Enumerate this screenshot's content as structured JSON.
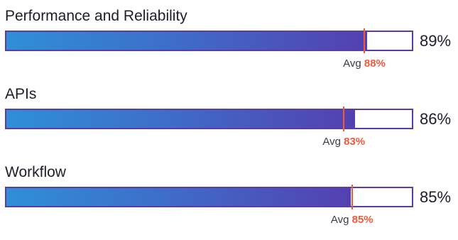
{
  "chart_data": {
    "type": "bar",
    "orientation": "horizontal",
    "xlim": [
      0,
      100
    ],
    "avg_prefix": "Avg",
    "colors": {
      "bar_gradient_start": "#2f8fd6",
      "bar_gradient_end": "#5440b0",
      "bar_border": "#5b3ba8",
      "avg_marker": "#f05a3c"
    },
    "categories": [
      "Performance and Reliability",
      "APIs",
      "Workflow"
    ],
    "items": [
      {
        "label": "Performance and Reliability",
        "value": 89,
        "value_label": "89%",
        "avg": 88,
        "avg_label": "88%"
      },
      {
        "label": "APIs",
        "value": 86,
        "value_label": "86%",
        "avg": 83,
        "avg_label": "83%"
      },
      {
        "label": "Workflow",
        "value": 85,
        "value_label": "85%",
        "avg": 85,
        "avg_label": "85%"
      }
    ]
  }
}
